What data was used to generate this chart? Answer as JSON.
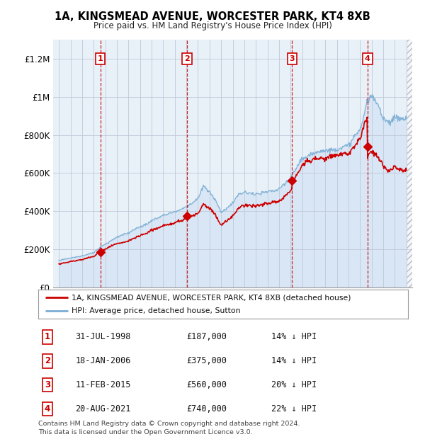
{
  "title": "1A, KINGSMEAD AVENUE, WORCESTER PARK, KT4 8XB",
  "subtitle": "Price paid vs. HM Land Registry's House Price Index (HPI)",
  "xlim": [
    1994.5,
    2025.5
  ],
  "ylim": [
    0,
    1300000
  ],
  "yticks": [
    0,
    200000,
    400000,
    600000,
    800000,
    1000000,
    1200000
  ],
  "ytick_labels": [
    "£0",
    "£200K",
    "£400K",
    "£600K",
    "£800K",
    "£1M",
    "£1.2M"
  ],
  "xticks": [
    1995,
    1996,
    1997,
    1998,
    1999,
    2000,
    2001,
    2002,
    2003,
    2004,
    2005,
    2006,
    2007,
    2008,
    2009,
    2010,
    2011,
    2012,
    2013,
    2014,
    2015,
    2016,
    2017,
    2018,
    2019,
    2020,
    2021,
    2022,
    2023,
    2024,
    2025
  ],
  "sale_dates": [
    1998.58,
    2006.05,
    2015.12,
    2021.64
  ],
  "sale_prices": [
    187000,
    375000,
    560000,
    740000
  ],
  "sale_labels": [
    "1",
    "2",
    "3",
    "4"
  ],
  "sale_date_strs": [
    "31-JUL-1998",
    "18-JAN-2006",
    "11-FEB-2015",
    "20-AUG-2021"
  ],
  "sale_price_strs": [
    "£187,000",
    "£375,000",
    "£560,000",
    "£740,000"
  ],
  "sale_hpi_strs": [
    "14% ↓ HPI",
    "14% ↓ HPI",
    "20% ↓ HPI",
    "22% ↓ HPI"
  ],
  "price_line_color": "#cc0000",
  "hpi_line_color": "#7aadd4",
  "hpi_fill_color": "#ddeeff",
  "background_color": "#e8f0f8",
  "grid_color": "#c0c8d8",
  "vline_color": "#cc0000",
  "footnote": "Contains HM Land Registry data © Crown copyright and database right 2024.\nThis data is licensed under the Open Government Licence v3.0.",
  "legend_entry1": "1A, KINGSMEAD AVENUE, WORCESTER PARK, KT4 8XB (detached house)",
  "legend_entry2": "HPI: Average price, detached house, Sutton"
}
